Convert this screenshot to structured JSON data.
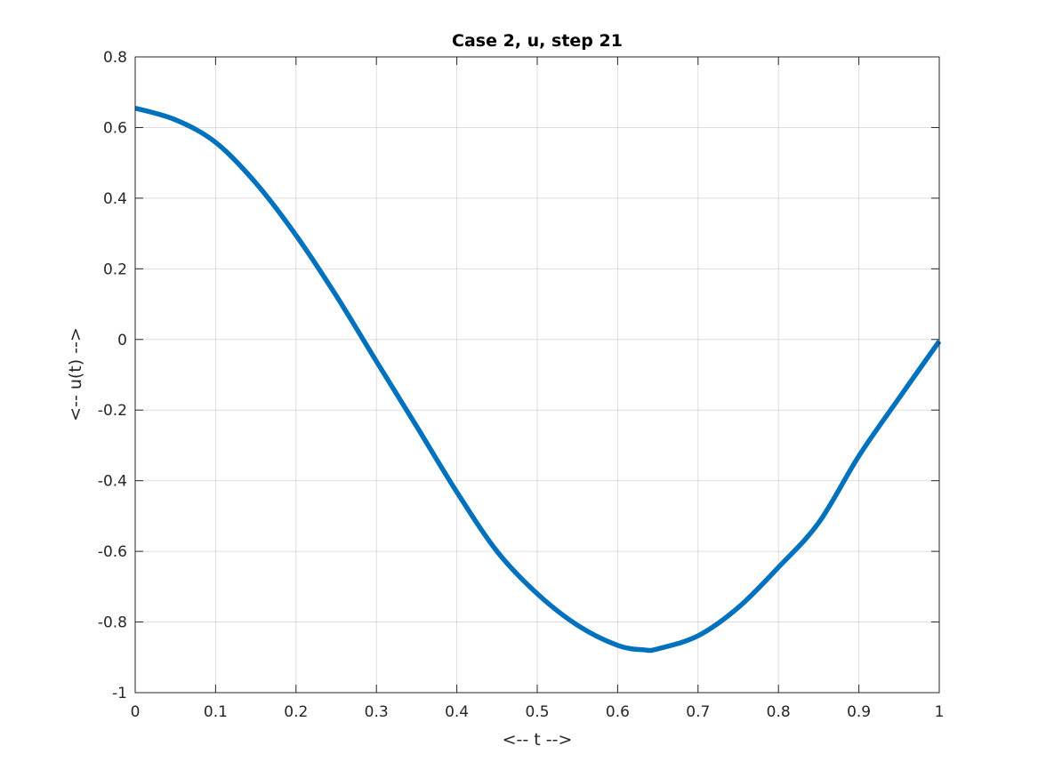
{
  "chart_data": {
    "type": "line",
    "title": "Case 2, u, step 21",
    "xlabel": "<-- t -->",
    "ylabel": "<-- u(t) -->",
    "xlim": [
      0,
      1
    ],
    "ylim": [
      -1,
      0.8
    ],
    "xticks": [
      0,
      0.1,
      0.2,
      0.3,
      0.4,
      0.5,
      0.6,
      0.7,
      0.8,
      0.9,
      1
    ],
    "xtick_labels": [
      "0",
      "0.1",
      "0.2",
      "0.3",
      "0.4",
      "0.5",
      "0.6",
      "0.7",
      "0.8",
      "0.9",
      "1"
    ],
    "yticks": [
      -1,
      -0.8,
      -0.6,
      -0.4,
      -0.2,
      0,
      0.2,
      0.4,
      0.6,
      0.8
    ],
    "ytick_labels": [
      "-1",
      "-0.8",
      "-0.6",
      "-0.4",
      "-0.2",
      "0",
      "0.2",
      "0.4",
      "0.6",
      "0.8"
    ],
    "grid": true,
    "box": true,
    "series": [
      {
        "color": "#0072BD",
        "x": [
          0,
          0.05,
          0.1,
          0.15,
          0.2,
          0.25,
          0.3,
          0.35,
          0.4,
          0.45,
          0.5,
          0.55,
          0.6,
          0.633,
          0.65,
          0.7,
          0.75,
          0.8,
          0.85,
          0.9,
          0.95,
          1.0
        ],
        "y": [
          0.655,
          0.622,
          0.558,
          0.443,
          0.295,
          0.124,
          -0.062,
          -0.246,
          -0.432,
          -0.6,
          -0.72,
          -0.809,
          -0.866,
          -0.879,
          -0.876,
          -0.839,
          -0.759,
          -0.645,
          -0.519,
          -0.33,
          -0.166,
          -0.005
        ]
      }
    ]
  }
}
